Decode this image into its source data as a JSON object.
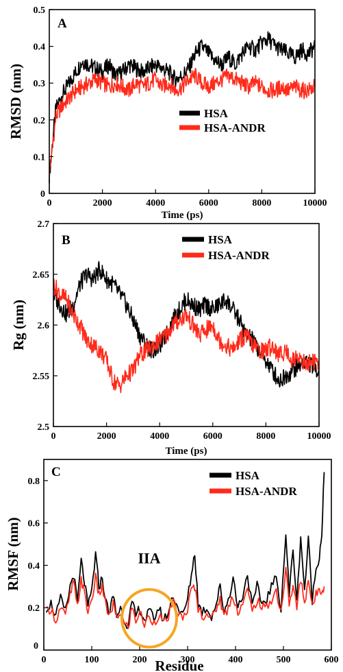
{
  "chart_data": [
    {
      "type": "line",
      "panel_label": "A",
      "xlabel": "Time (ps)",
      "ylabel": "RMSD (nm)",
      "xlim": [
        0,
        10000
      ],
      "ylim": [
        0,
        0.5
      ],
      "xticks": [
        0,
        2000,
        4000,
        6000,
        8000,
        10000
      ],
      "yticks": [
        0,
        0.1,
        0.2,
        0.3,
        0.4,
        0.5
      ],
      "ytick_labels": [
        "0",
        "0.1",
        "0.2",
        "0.3",
        "0.4",
        "0.5"
      ],
      "legend_position": "center-right",
      "colors": {
        "HSA": "#000000",
        "HSA-ANDR": "#ff2a1a"
      },
      "series": [
        {
          "name": "HSA",
          "x": [
            0,
            250,
            500,
            750,
            1000,
            1250,
            1500,
            1750,
            2000,
            2250,
            2500,
            2750,
            3000,
            3250,
            3500,
            3750,
            4000,
            4250,
            4500,
            4750,
            5000,
            5250,
            5500,
            5750,
            6000,
            6250,
            6500,
            6750,
            7000,
            7250,
            7500,
            7750,
            8000,
            8250,
            8500,
            8750,
            9000,
            9250,
            9500,
            9750,
            10000
          ],
          "y": [
            0.05,
            0.23,
            0.27,
            0.3,
            0.33,
            0.36,
            0.35,
            0.34,
            0.33,
            0.35,
            0.32,
            0.33,
            0.35,
            0.34,
            0.33,
            0.34,
            0.35,
            0.34,
            0.33,
            0.31,
            0.32,
            0.34,
            0.38,
            0.4,
            0.38,
            0.36,
            0.35,
            0.37,
            0.35,
            0.38,
            0.4,
            0.39,
            0.41,
            0.42,
            0.4,
            0.39,
            0.38,
            0.37,
            0.39,
            0.38,
            0.4
          ]
        },
        {
          "name": "HSA-ANDR",
          "x": [
            0,
            250,
            500,
            750,
            1000,
            1250,
            1500,
            1750,
            2000,
            2250,
            2500,
            2750,
            3000,
            3250,
            3500,
            3750,
            4000,
            4250,
            4500,
            4750,
            5000,
            5250,
            5500,
            5750,
            6000,
            6250,
            6500,
            6750,
            7000,
            7250,
            7500,
            7750,
            8000,
            8250,
            8500,
            8750,
            9000,
            9250,
            9500,
            9750,
            10000
          ],
          "y": [
            0.05,
            0.21,
            0.24,
            0.26,
            0.28,
            0.29,
            0.3,
            0.31,
            0.3,
            0.29,
            0.3,
            0.29,
            0.28,
            0.3,
            0.29,
            0.3,
            0.31,
            0.29,
            0.3,
            0.28,
            0.29,
            0.31,
            0.32,
            0.3,
            0.29,
            0.3,
            0.31,
            0.32,
            0.31,
            0.3,
            0.29,
            0.3,
            0.29,
            0.28,
            0.28,
            0.29,
            0.28,
            0.29,
            0.28,
            0.28,
            0.29
          ]
        }
      ]
    },
    {
      "type": "line",
      "panel_label": "B",
      "xlabel": "Time (ps)",
      "ylabel": "Rg (nm)",
      "xlim": [
        0,
        10000
      ],
      "ylim": [
        2.5,
        2.7
      ],
      "xticks": [
        0,
        2000,
        4000,
        6000,
        8000,
        10000
      ],
      "yticks": [
        2.5,
        2.55,
        2.6,
        2.65,
        2.7
      ],
      "ytick_labels": [
        "2.5",
        "2.55",
        "2.6",
        "2.65",
        "2.7"
      ],
      "legend_position": "top-right",
      "colors": {
        "HSA": "#000000",
        "HSA-ANDR": "#ff2a1a"
      },
      "series": [
        {
          "name": "HSA",
          "x": [
            0,
            250,
            500,
            750,
            1000,
            1250,
            1500,
            1750,
            2000,
            2250,
            2500,
            2750,
            3000,
            3250,
            3500,
            3750,
            4000,
            4250,
            4500,
            4750,
            5000,
            5250,
            5500,
            5750,
            6000,
            6250,
            6500,
            6750,
            7000,
            7250,
            7500,
            7750,
            8000,
            8250,
            8500,
            8750,
            9000,
            9250,
            9500,
            9750,
            10000
          ],
          "y": [
            2.63,
            2.62,
            2.61,
            2.62,
            2.64,
            2.65,
            2.645,
            2.655,
            2.645,
            2.64,
            2.63,
            2.62,
            2.605,
            2.59,
            2.58,
            2.575,
            2.58,
            2.59,
            2.605,
            2.615,
            2.625,
            2.62,
            2.615,
            2.62,
            2.615,
            2.62,
            2.625,
            2.615,
            2.605,
            2.59,
            2.585,
            2.575,
            2.565,
            2.555,
            2.545,
            2.55,
            2.555,
            2.56,
            2.565,
            2.56,
            2.555
          ]
        },
        {
          "name": "HSA-ANDR",
          "x": [
            0,
            250,
            500,
            750,
            1000,
            1250,
            1500,
            1750,
            2000,
            2250,
            2500,
            2750,
            3000,
            3250,
            3500,
            3750,
            4000,
            4250,
            4500,
            4750,
            5000,
            5250,
            5500,
            5750,
            6000,
            6250,
            6500,
            6750,
            7000,
            7250,
            7500,
            7750,
            8000,
            8250,
            8500,
            8750,
            9000,
            9250,
            9500,
            9750,
            10000
          ],
          "y": [
            2.64,
            2.63,
            2.625,
            2.61,
            2.6,
            2.585,
            2.58,
            2.575,
            2.565,
            2.545,
            2.54,
            2.55,
            2.555,
            2.57,
            2.575,
            2.58,
            2.585,
            2.59,
            2.6,
            2.605,
            2.61,
            2.6,
            2.59,
            2.595,
            2.6,
            2.585,
            2.58,
            2.575,
            2.585,
            2.59,
            2.58,
            2.575,
            2.575,
            2.58,
            2.57,
            2.575,
            2.565,
            2.57,
            2.56,
            2.565,
            2.56
          ]
        }
      ]
    },
    {
      "type": "line",
      "panel_label": "C",
      "xlabel": "Residue",
      "ylabel": "RMSF (nm)",
      "xlim": [
        0,
        600
      ],
      "ylim": [
        0,
        0.9
      ],
      "xticks": [
        0,
        100,
        200,
        300,
        400,
        500,
        600
      ],
      "yticks": [
        0.2,
        0.4,
        0.6,
        0.8
      ],
      "ytick_labels": [
        "0.2",
        "0.4",
        "0.6",
        "0.8"
      ],
      "extra_ytick_labels": [
        {
          "value": 0,
          "label": "0"
        }
      ],
      "legend_position": "top-right",
      "annotation": {
        "text": "IIA",
        "x": 220,
        "y": 0.41,
        "circle_center": [
          220,
          0.15
        ],
        "color": "#f5a623"
      },
      "colors": {
        "HSA": "#000000",
        "HSA-ANDR": "#ff2a1a"
      },
      "series": [
        {
          "name": "HSA",
          "x": [
            5,
            15,
            25,
            35,
            45,
            55,
            62,
            70,
            78,
            85,
            92,
            100,
            108,
            115,
            122,
            130,
            138,
            145,
            152,
            160,
            168,
            176,
            184,
            192,
            200,
            210,
            220,
            230,
            240,
            250,
            260,
            270,
            280,
            290,
            300,
            308,
            315,
            322,
            330,
            340,
            350,
            360,
            368,
            376,
            385,
            395,
            405,
            415,
            425,
            435,
            445,
            455,
            465,
            475,
            485,
            495,
            505,
            512,
            520,
            528,
            536,
            544,
            552,
            560,
            568,
            575,
            580,
            585
          ],
          "y": [
            0.2,
            0.22,
            0.16,
            0.24,
            0.18,
            0.3,
            0.36,
            0.22,
            0.42,
            0.32,
            0.2,
            0.28,
            0.45,
            0.3,
            0.34,
            0.22,
            0.18,
            0.26,
            0.16,
            0.2,
            0.14,
            0.12,
            0.22,
            0.16,
            0.2,
            0.14,
            0.18,
            0.15,
            0.2,
            0.14,
            0.18,
            0.26,
            0.2,
            0.16,
            0.24,
            0.36,
            0.46,
            0.22,
            0.18,
            0.2,
            0.16,
            0.22,
            0.3,
            0.18,
            0.24,
            0.34,
            0.2,
            0.26,
            0.36,
            0.2,
            0.3,
            0.22,
            0.24,
            0.3,
            0.34,
            0.2,
            0.55,
            0.26,
            0.48,
            0.22,
            0.54,
            0.28,
            0.52,
            0.24,
            0.38,
            0.45,
            0.55,
            0.84
          ]
        },
        {
          "name": "HSA-ANDR",
          "x": [
            5,
            15,
            25,
            35,
            45,
            55,
            62,
            70,
            78,
            85,
            92,
            100,
            108,
            115,
            122,
            130,
            138,
            145,
            152,
            160,
            168,
            176,
            184,
            192,
            200,
            210,
            220,
            230,
            240,
            250,
            260,
            270,
            280,
            290,
            300,
            308,
            315,
            322,
            330,
            340,
            350,
            360,
            368,
            376,
            385,
            395,
            405,
            415,
            425,
            435,
            445,
            455,
            465,
            475,
            485,
            495,
            505,
            512,
            520,
            528,
            536,
            544,
            552,
            560,
            568,
            575,
            580,
            585
          ],
          "y": [
            0.18,
            0.2,
            0.14,
            0.2,
            0.16,
            0.26,
            0.32,
            0.2,
            0.34,
            0.26,
            0.18,
            0.24,
            0.34,
            0.26,
            0.3,
            0.2,
            0.16,
            0.22,
            0.14,
            0.18,
            0.12,
            0.11,
            0.2,
            0.14,
            0.18,
            0.12,
            0.16,
            0.13,
            0.17,
            0.12,
            0.16,
            0.22,
            0.18,
            0.14,
            0.2,
            0.28,
            0.3,
            0.2,
            0.16,
            0.18,
            0.14,
            0.2,
            0.24,
            0.16,
            0.2,
            0.26,
            0.18,
            0.22,
            0.28,
            0.18,
            0.24,
            0.2,
            0.2,
            0.24,
            0.28,
            0.18,
            0.38,
            0.22,
            0.3,
            0.2,
            0.34,
            0.22,
            0.34,
            0.2,
            0.26,
            0.3,
            0.28,
            0.3
          ]
        }
      ]
    }
  ]
}
